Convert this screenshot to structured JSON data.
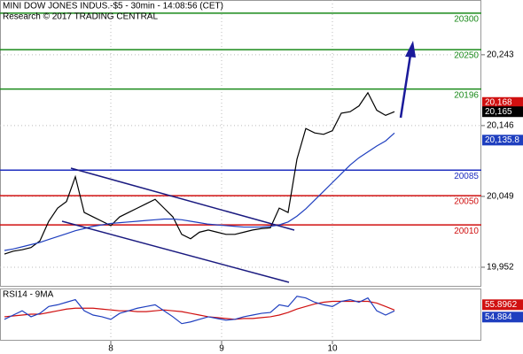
{
  "chart_data": {
    "type": "line",
    "title": "MINI DOW JONES INDUS.-$5 - 30min - 14:08:56 (CET)",
    "subtitle": "Research © 2017 TRADING CENTRAL",
    "x": [
      0,
      1,
      2,
      3,
      4,
      5,
      6,
      7,
      8,
      9,
      10,
      11,
      12,
      13,
      14,
      15,
      16,
      17,
      18,
      19,
      20,
      21,
      22,
      23,
      24,
      25,
      26,
      27,
      28,
      29,
      30,
      31,
      32,
      33,
      34,
      35,
      36,
      37,
      38,
      39,
      40,
      41,
      42,
      43,
      44
    ],
    "xlim": [
      -0.5,
      53.8
    ],
    "xticks": [
      {
        "value": 12,
        "label": "8"
      },
      {
        "value": 24.5,
        "label": "9"
      },
      {
        "value": 37,
        "label": "10"
      }
    ],
    "ylim": [
      19926.5,
      20318
    ],
    "yticks": [
      {
        "value": 20243,
        "label": "20,243"
      },
      {
        "value": 20146,
        "label": "20,146"
      },
      {
        "value": 20049,
        "label": "20,049"
      },
      {
        "value": 19952,
        "label": "19,952"
      }
    ],
    "grid": true,
    "series": [
      {
        "color": "#000000",
        "values": [
          19970,
          19974,
          19976,
          19979,
          19988,
          20015,
          20033,
          20042,
          20076,
          20027,
          20021,
          20015,
          20009,
          20021,
          20027,
          20033,
          20039,
          20045,
          20033,
          20021,
          19997,
          19991,
          20000,
          20003,
          20000,
          19997,
          19997,
          20000,
          20003,
          20005,
          20006,
          20033,
          20027,
          20100,
          20142,
          20136,
          20134,
          20139,
          20163,
          20165,
          20173,
          20191,
          20167,
          20160,
          20165
        ]
      },
      {
        "color": "#1f3fbf",
        "values": [
          19975,
          19977,
          19980,
          19983,
          19986,
          19990,
          19994,
          19998,
          20002,
          20005,
          20008,
          20010,
          20012,
          20013,
          20014,
          20015,
          20016,
          20017,
          20018,
          20018,
          20017,
          20015,
          20013,
          20011,
          20010,
          20009,
          20008,
          20007,
          20007,
          20007,
          20008,
          20010,
          20014,
          20022,
          20032,
          20044,
          20056,
          20068,
          20080,
          20092,
          20102,
          20110,
          20118,
          20125,
          20135.8
        ]
      }
    ],
    "levels": [
      {
        "value": 20300,
        "color": "#1a8a1a"
      },
      {
        "value": 20250,
        "color": "#1a8a1a"
      },
      {
        "value": 20196,
        "color": "#1a8a1a"
      },
      {
        "value": 20085,
        "color": "#1f2fbf"
      },
      {
        "value": 20050,
        "color": "#d01010"
      },
      {
        "value": 20010,
        "color": "#d01010"
      }
    ],
    "price_labels": [
      {
        "value": 20168,
        "label": "20,168",
        "color": "#d01010"
      },
      {
        "value": 20165,
        "label": "20,165",
        "color": "#000000"
      },
      {
        "value": 20135.8,
        "label": "20,135.8",
        "color": "#1f3fbf"
      }
    ],
    "rsi": {
      "title": "RSI14 - 9MA",
      "ylim": [
        20,
        80
      ],
      "series": [
        {
          "color": "#d01010",
          "values": [
            48,
            49,
            50,
            51,
            51,
            53,
            55,
            57,
            58,
            58,
            58,
            57,
            56,
            55,
            55,
            54,
            54,
            55,
            56,
            55,
            54,
            52,
            50,
            48,
            47,
            46,
            45,
            46,
            46,
            47,
            48,
            50,
            53,
            57,
            60,
            63,
            65,
            66,
            66,
            66,
            66,
            66,
            64,
            60,
            55.8962
          ]
        },
        {
          "color": "#1f3fbf",
          "values": [
            45,
            50,
            55,
            48,
            52,
            60,
            62,
            65,
            68,
            55,
            50,
            48,
            45,
            52,
            55,
            58,
            60,
            62,
            55,
            48,
            40,
            42,
            45,
            48,
            46,
            44,
            45,
            48,
            50,
            52,
            53,
            62,
            60,
            72,
            70,
            65,
            62,
            60,
            66,
            68,
            65,
            70,
            55,
            50,
            54.884
          ]
        }
      ]
    }
  }
}
